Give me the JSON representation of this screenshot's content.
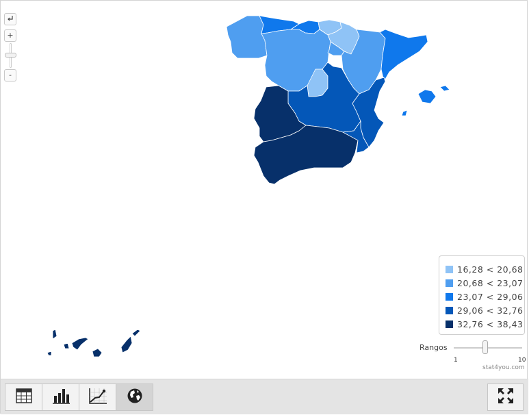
{
  "zoom": {
    "reset_icon": "arrow-return-icon",
    "plus_label": "+",
    "minus_label": "-"
  },
  "map": {
    "colors": {
      "class1": "#8fc3f6",
      "class2": "#4f9ef0",
      "class3": "#0f78ec",
      "class4": "#0457b8",
      "class5": "#07306a"
    },
    "regions": [
      {
        "name": "Galicia",
        "class": "class2"
      },
      {
        "name": "Asturias",
        "class": "class3"
      },
      {
        "name": "Cantabria",
        "class": "class3"
      },
      {
        "name": "País Vasco",
        "class": "class1"
      },
      {
        "name": "Navarra",
        "class": "class1"
      },
      {
        "name": "Castilla y León",
        "class": "class2"
      },
      {
        "name": "La Rioja",
        "class": "class2"
      },
      {
        "name": "Aragón",
        "class": "class2"
      },
      {
        "name": "Cataluña",
        "class": "class3"
      },
      {
        "name": "Madrid",
        "class": "class1"
      },
      {
        "name": "Castilla-La Mancha",
        "class": "class4"
      },
      {
        "name": "Comunidad Valenciana",
        "class": "class4"
      },
      {
        "name": "Extremadura",
        "class": "class5"
      },
      {
        "name": "Andalucía",
        "class": "class5"
      },
      {
        "name": "Murcia",
        "class": "class4"
      },
      {
        "name": "Islas Baleares",
        "class": "class3"
      },
      {
        "name": "Canarias",
        "class": "class5"
      }
    ]
  },
  "legend": {
    "items": [
      {
        "label": "16,28 < 20,68",
        "color": "#8fc3f6"
      },
      {
        "label": "20,68 < 23,07",
        "color": "#4f9ef0"
      },
      {
        "label": "23,07 < 29,06",
        "color": "#0f78ec"
      },
      {
        "label": "29,06 < 32,76",
        "color": "#0457b8"
      },
      {
        "label": "32,76 < 38,43",
        "color": "#07306a"
      }
    ]
  },
  "ranges": {
    "label": "Rangos",
    "min_label": "1",
    "max_label": "10",
    "min": 1,
    "max": 10,
    "value": 5
  },
  "brand": "stat4you.com",
  "toolbar": {
    "tabs": [
      {
        "name": "table-tab",
        "icon": "table-icon",
        "active": false
      },
      {
        "name": "bar-chart-tab",
        "icon": "bar-chart-icon",
        "active": false
      },
      {
        "name": "line-chart-tab",
        "icon": "line-chart-icon",
        "active": false
      },
      {
        "name": "map-tab",
        "icon": "globe-icon",
        "active": true
      }
    ],
    "fullscreen_icon": "fullscreen-icon"
  }
}
